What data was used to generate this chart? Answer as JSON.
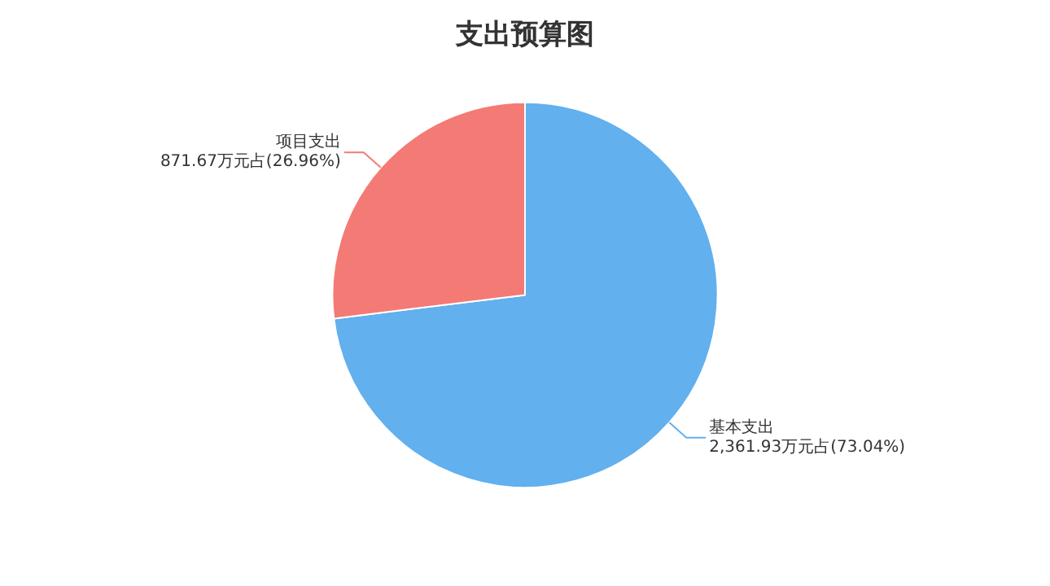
{
  "chart_data": {
    "type": "pie",
    "title": "支出预算图",
    "categories": [
      "基本支出",
      "项目支出"
    ],
    "values": [
      2361.93,
      871.67
    ],
    "colors": [
      "#62b0ee",
      "#f47a75"
    ],
    "value_labels": [
      "2,361.93万元占(73.04%)",
      "871.67万元占(26.96%)"
    ],
    "legend": false
  }
}
